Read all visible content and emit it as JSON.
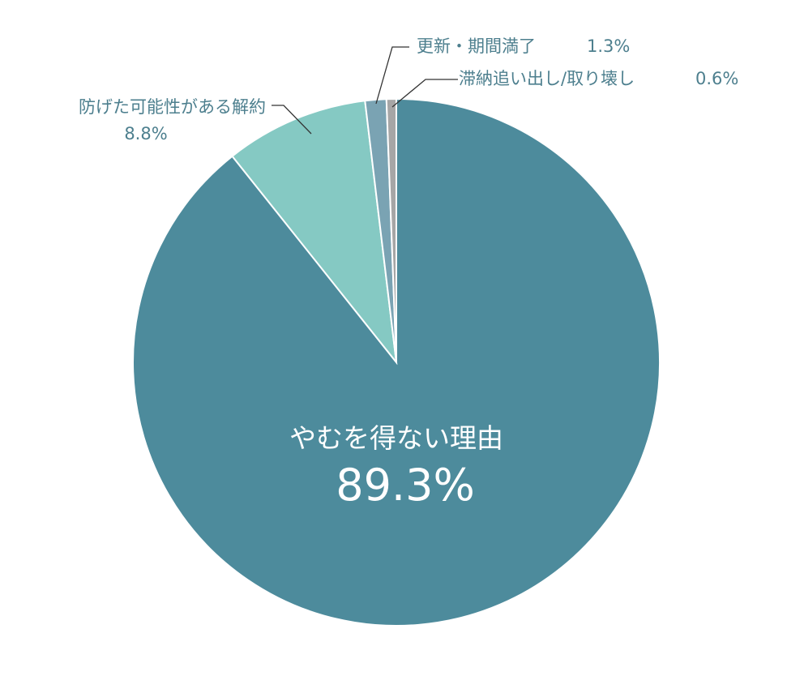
{
  "chart_data": {
    "type": "pie",
    "start_angle_deg": 0,
    "direction": "clockwise",
    "slices": [
      {
        "name": "やむを得ない理由",
        "value": 89.3,
        "label": "89.3%",
        "color": "#4d8b9c"
      },
      {
        "name": "防げた可能性がある解約",
        "value": 8.8,
        "label": "8.8%",
        "color": "#85c9c3"
      },
      {
        "name": "更新・期間満了",
        "value": 1.3,
        "label": "1.3%",
        "color": "#7aa3b3"
      },
      {
        "name": "滞納追い出し/取り壊し",
        "value": 0.6,
        "label": "0.6%",
        "color": "#a6a6a6"
      }
    ]
  },
  "labels": {
    "main_name": "やむを得ない理由",
    "main_value": "89.3%",
    "slice2_name": "防げた可能性がある解約",
    "slice2_value": "8.8%",
    "slice3_text": "更新・期間満了",
    "slice3_value": "1.3%",
    "slice4_text": "滞納追い出し/取り壊し",
    "slice4_value": "0.6%"
  },
  "colors": {
    "outer_label": "#4d7f8e",
    "leader_line": "#333333",
    "slice_border": "#ffffff"
  }
}
